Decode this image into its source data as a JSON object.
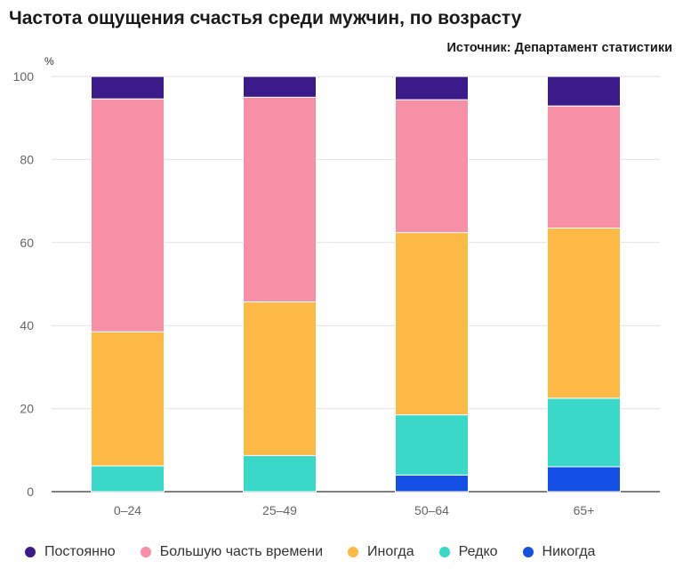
{
  "header": {
    "title": "Частота ощущения счастья среди мужчин, по возрасту",
    "source": "Источник: Департамент статистики"
  },
  "chart_data": {
    "type": "bar",
    "stacked": true,
    "title": "Частота ощущения счастья среди мужчин, по возрасту",
    "ylabel": "%",
    "ylim": [
      0,
      100
    ],
    "yticks": [
      0,
      20,
      40,
      60,
      80,
      100
    ],
    "grid": true,
    "legend_position": "bottom-left",
    "categories": [
      "0–24",
      "25–49",
      "50–64",
      "65+"
    ],
    "series": [
      {
        "name": "Никогда",
        "color": "#1450e6",
        "values": [
          0,
          0,
          4.0,
          6.0
        ]
      },
      {
        "name": "Редко",
        "color": "#3ad8c8",
        "values": [
          6.2,
          8.7,
          14.5,
          16.5
        ]
      },
      {
        "name": "Иногда",
        "color": "#fdb945",
        "values": [
          32.3,
          37.0,
          43.9,
          41.0
        ]
      },
      {
        "name": "Большую часть времени",
        "color": "#f78fa7",
        "values": [
          56.1,
          49.3,
          32.0,
          29.4
        ]
      },
      {
        "name": "Постоянно",
        "color": "#3b1a8a",
        "values": [
          5.4,
          5.0,
          5.6,
          7.1
        ]
      }
    ]
  },
  "legend": [
    {
      "label": "Постоянно",
      "color": "#3b1a8a"
    },
    {
      "label": "Большую часть времени",
      "color": "#f78fa7"
    },
    {
      "label": "Иногда",
      "color": "#fdb945"
    },
    {
      "label": "Редко",
      "color": "#3ad8c8"
    },
    {
      "label": "Никогда",
      "color": "#1450e6"
    }
  ]
}
